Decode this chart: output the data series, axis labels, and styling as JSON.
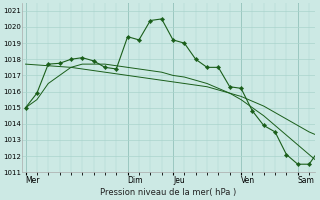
{
  "background_color": "#cce9e4",
  "grid_color": "#aad4cc",
  "line_color": "#1a5e1a",
  "marker_color": "#1a5e1a",
  "title": "Pression niveau de la mer( hPa )",
  "ylim": [
    1011,
    1021.5
  ],
  "yticks": [
    1011,
    1012,
    1013,
    1014,
    1015,
    1016,
    1017,
    1018,
    1019,
    1020,
    1021
  ],
  "x_day_labels": [
    "Mer",
    "Dim",
    "Jeu",
    "Ven",
    "Sam"
  ],
  "x_day_positions": [
    0,
    9,
    13,
    19,
    24
  ],
  "xlim": [
    -0.3,
    25.5
  ],
  "series_main": [
    1015.0,
    1015.9,
    1017.7,
    1017.75,
    1018.0,
    1018.1,
    1017.9,
    1017.5,
    1017.4,
    1019.4,
    1019.2,
    1020.4,
    1020.5,
    1019.2,
    1019.0,
    1018.0,
    1017.5,
    1017.5,
    1016.3,
    1016.2,
    1014.8,
    1013.9,
    1013.5,
    1012.1,
    1011.5,
    1011.5,
    1012.5
  ],
  "series_smooth1": [
    1017.7,
    1017.65,
    1017.6,
    1017.55,
    1017.5,
    1017.4,
    1017.3,
    1017.2,
    1017.1,
    1017.0,
    1016.9,
    1016.8,
    1016.7,
    1016.6,
    1016.5,
    1016.4,
    1016.3,
    1016.1,
    1015.9,
    1015.7,
    1015.4,
    1015.1,
    1014.7,
    1014.3,
    1013.9,
    1013.5,
    1013.2
  ],
  "series_smooth2": [
    1015.0,
    1015.5,
    1016.5,
    1017.0,
    1017.5,
    1017.7,
    1017.7,
    1017.7,
    1017.6,
    1017.5,
    1017.4,
    1017.3,
    1017.2,
    1017.0,
    1016.9,
    1016.7,
    1016.5,
    1016.2,
    1015.9,
    1015.5,
    1015.0,
    1014.5,
    1013.9,
    1013.3,
    1012.7,
    1012.1,
    1011.5
  ]
}
